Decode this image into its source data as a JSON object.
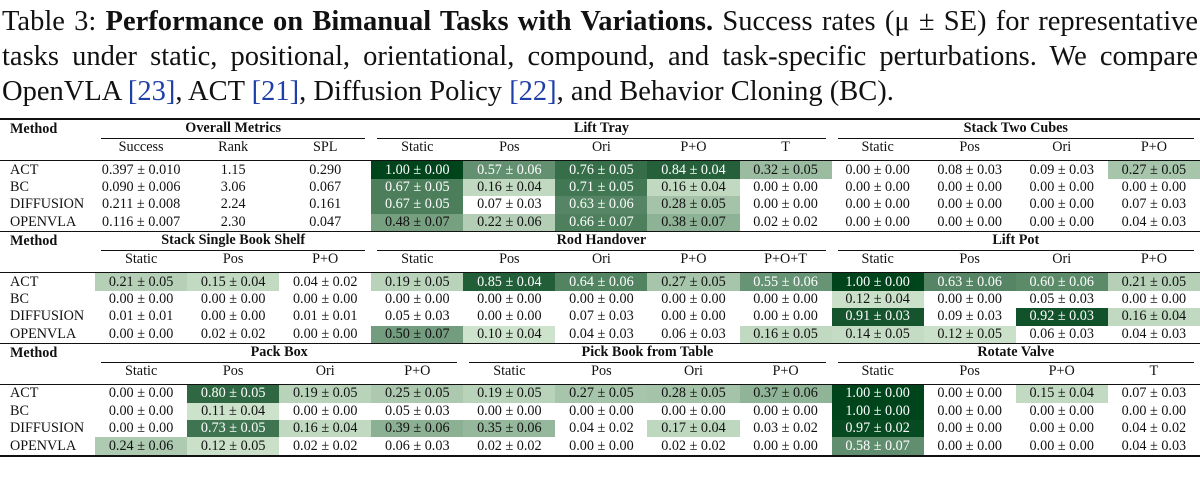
{
  "caption": {
    "label": "Table 3:",
    "title": "Performance on Bimanual Tasks with Variations.",
    "segments": [
      {
        "text": "Success rates (μ ± SE) for representative tasks under static, positional, orientational, compound, and task-specific perturbations. We compare OpenVLA "
      },
      {
        "text": "[23]",
        "ref": true
      },
      {
        "text": ", ACT "
      },
      {
        "text": "[21]",
        "ref": true
      },
      {
        "text": ", Diffusion Policy "
      },
      {
        "text": "[22]",
        "ref": true
      },
      {
        "text": ", and Behavior Cloning (BC)."
      }
    ]
  },
  "heatmap_colors": [
    "#e5f5e0",
    "#00441b"
  ],
  "blocks": [
    {
      "method_header": "Method",
      "groups": [
        {
          "title": "Overall Metrics",
          "columns": [
            "Success",
            "Rank",
            "SPL"
          ],
          "shaded": false
        },
        {
          "title": "Lift Tray",
          "columns": [
            "Static",
            "Pos",
            "Ori",
            "P+O",
            "T"
          ],
          "shaded": true
        },
        {
          "title": "Stack Two Cubes",
          "columns": [
            "Static",
            "Pos",
            "Ori",
            "P+O"
          ],
          "shaded": true
        }
      ],
      "rows": [
        {
          "method": "ACT",
          "cells": [
            "0.397 ± 0.010",
            "1.15",
            "0.290",
            "1.00 ± 0.00",
            "0.57 ± 0.06",
            "0.76 ± 0.05",
            "0.84 ± 0.04",
            "0.32 ± 0.05",
            "0.00 ± 0.00",
            "0.08 ± 0.03",
            "0.09 ± 0.03",
            "0.27 ± 0.05"
          ]
        },
        {
          "method": "BC",
          "cells": [
            "0.090 ± 0.006",
            "3.06",
            "0.067",
            "0.67 ± 0.05",
            "0.16 ± 0.04",
            "0.71 ± 0.05",
            "0.16 ± 0.04",
            "0.00 ± 0.00",
            "0.00 ± 0.00",
            "0.00 ± 0.00",
            "0.00 ± 0.00",
            "0.00 ± 0.00"
          ]
        },
        {
          "method": "DIFFUSION",
          "cells": [
            "0.211 ± 0.008",
            "2.24",
            "0.161",
            "0.67 ± 0.05",
            "0.07 ± 0.03",
            "0.63 ± 0.06",
            "0.28 ± 0.05",
            "0.00 ± 0.00",
            "0.00 ± 0.00",
            "0.00 ± 0.00",
            "0.00 ± 0.00",
            "0.07 ± 0.03"
          ]
        },
        {
          "method": "OPENVLA",
          "cells": [
            "0.116 ± 0.007",
            "2.30",
            "0.047",
            "0.48 ± 0.07",
            "0.22 ± 0.06",
            "0.66 ± 0.07",
            "0.38 ± 0.07",
            "0.02 ± 0.02",
            "0.00 ± 0.00",
            "0.00 ± 0.00",
            "0.00 ± 0.00",
            "0.04 ± 0.03"
          ]
        }
      ]
    },
    {
      "method_header": "Method",
      "groups": [
        {
          "title": "Stack Single Book Shelf",
          "columns": [
            "Static",
            "Pos",
            "P+O"
          ],
          "shaded": true
        },
        {
          "title": "Rod Handover",
          "columns": [
            "Static",
            "Pos",
            "Ori",
            "P+O",
            "P+O+T"
          ],
          "shaded": true
        },
        {
          "title": "Lift Pot",
          "columns": [
            "Static",
            "Pos",
            "Ori",
            "P+O"
          ],
          "shaded": true
        }
      ],
      "rows": [
        {
          "method": "ACT",
          "cells": [
            "0.21 ± 0.05",
            "0.15 ± 0.04",
            "0.04 ± 0.02",
            "0.19 ± 0.05",
            "0.85 ± 0.04",
            "0.64 ± 0.06",
            "0.27 ± 0.05",
            "0.55 ± 0.06",
            "1.00 ± 0.00",
            "0.63 ± 0.06",
            "0.60 ± 0.06",
            "0.21 ± 0.05"
          ]
        },
        {
          "method": "BC",
          "cells": [
            "0.00 ± 0.00",
            "0.00 ± 0.00",
            "0.00 ± 0.00",
            "0.00 ± 0.00",
            "0.00 ± 0.00",
            "0.00 ± 0.00",
            "0.00 ± 0.00",
            "0.00 ± 0.00",
            "0.12 ± 0.04",
            "0.00 ± 0.00",
            "0.05 ± 0.03",
            "0.00 ± 0.00"
          ]
        },
        {
          "method": "DIFFUSION",
          "cells": [
            "0.01 ± 0.01",
            "0.00 ± 0.00",
            "0.01 ± 0.01",
            "0.05 ± 0.03",
            "0.00 ± 0.00",
            "0.07 ± 0.03",
            "0.00 ± 0.00",
            "0.00 ± 0.00",
            "0.91 ± 0.03",
            "0.09 ± 0.03",
            "0.92 ± 0.03",
            "0.16 ± 0.04"
          ]
        },
        {
          "method": "OPENVLA",
          "cells": [
            "0.00 ± 0.00",
            "0.02 ± 0.02",
            "0.00 ± 0.00",
            "0.50 ± 0.07",
            "0.10 ± 0.04",
            "0.04 ± 0.03",
            "0.06 ± 0.03",
            "0.16 ± 0.05",
            "0.14 ± 0.05",
            "0.12 ± 0.05",
            "0.06 ± 0.03",
            "0.04 ± 0.03"
          ]
        }
      ]
    },
    {
      "method_header": "Method",
      "groups": [
        {
          "title": "Pack Box",
          "columns": [
            "Static",
            "Pos",
            "Ori",
            "P+O"
          ],
          "shaded": true
        },
        {
          "title": "Pick Book from Table",
          "columns": [
            "Static",
            "Pos",
            "Ori",
            "P+O"
          ],
          "shaded": true
        },
        {
          "title": "Rotate Valve",
          "columns": [
            "Static",
            "Pos",
            "P+O",
            "T"
          ],
          "shaded": true
        }
      ],
      "rows": [
        {
          "method": "ACT",
          "cells": [
            "0.00 ± 0.00",
            "0.80 ± 0.05",
            "0.19 ± 0.05",
            "0.25 ± 0.05",
            "0.19 ± 0.05",
            "0.27 ± 0.05",
            "0.28 ± 0.05",
            "0.37 ± 0.06",
            "1.00 ± 0.00",
            "0.00 ± 0.00",
            "0.15 ± 0.04",
            "0.07 ± 0.03"
          ]
        },
        {
          "method": "BC",
          "cells": [
            "0.00 ± 0.00",
            "0.11 ± 0.04",
            "0.00 ± 0.00",
            "0.05 ± 0.03",
            "0.00 ± 0.00",
            "0.00 ± 0.00",
            "0.00 ± 0.00",
            "0.00 ± 0.00",
            "1.00 ± 0.00",
            "0.00 ± 0.00",
            "0.00 ± 0.00",
            "0.00 ± 0.00"
          ]
        },
        {
          "method": "DIFFUSION",
          "cells": [
            "0.00 ± 0.00",
            "0.73 ± 0.05",
            "0.16 ± 0.04",
            "0.39 ± 0.06",
            "0.35 ± 0.06",
            "0.04 ± 0.02",
            "0.17 ± 0.04",
            "0.03 ± 0.02",
            "0.97 ± 0.02",
            "0.00 ± 0.00",
            "0.00 ± 0.00",
            "0.04 ± 0.02"
          ]
        },
        {
          "method": "OPENVLA",
          "cells": [
            "0.24 ± 0.06",
            "0.12 ± 0.05",
            "0.02 ± 0.02",
            "0.06 ± 0.03",
            "0.02 ± 0.02",
            "0.00 ± 0.00",
            "0.02 ± 0.02",
            "0.00 ± 0.00",
            "0.58 ± 0.07",
            "0.00 ± 0.00",
            "0.00 ± 0.00",
            "0.04 ± 0.03"
          ]
        }
      ]
    }
  ]
}
